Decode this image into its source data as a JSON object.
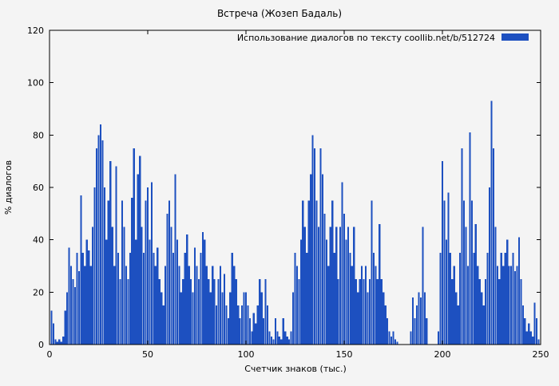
{
  "chart_data": {
    "type": "bar",
    "title": "Встреча (Жозеп Бадаль)",
    "legend": "Использование диалогов по тексту  coollib.net/b/512724",
    "xlabel": "Счетчик знаков (тыс.)",
    "ylabel": "% диалогов",
    "xlim": [
      0,
      250
    ],
    "ylim": [
      0,
      120
    ],
    "xticks": [
      0,
      50,
      100,
      150,
      200,
      250
    ],
    "yticks": [
      0,
      20,
      40,
      60,
      80,
      100,
      120
    ],
    "grid": false,
    "legend_position": "top-right-inside",
    "bar_color": "#1d50c0",
    "background_color": "#f4f4f4",
    "x_start": 1,
    "x_step": 1,
    "values": [
      13,
      8,
      2,
      1,
      2,
      1,
      3,
      13,
      20,
      37,
      30,
      25,
      22,
      35,
      28,
      57,
      35,
      30,
      40,
      36,
      30,
      45,
      60,
      75,
      80,
      84,
      78,
      60,
      40,
      55,
      70,
      45,
      30,
      68,
      35,
      25,
      55,
      45,
      30,
      25,
      35,
      56,
      75,
      40,
      65,
      72,
      45,
      35,
      55,
      60,
      40,
      62,
      35,
      30,
      37,
      25,
      20,
      15,
      30,
      50,
      55,
      45,
      35,
      65,
      40,
      30,
      20,
      25,
      35,
      42,
      30,
      25,
      20,
      37,
      30,
      25,
      35,
      43,
      40,
      30,
      25,
      20,
      30,
      25,
      15,
      25,
      30,
      20,
      27,
      15,
      10,
      20,
      35,
      30,
      25,
      15,
      10,
      15,
      20,
      20,
      15,
      10,
      5,
      12,
      8,
      15,
      25,
      20,
      10,
      25,
      15,
      5,
      3,
      2,
      10,
      5,
      3,
      2,
      10,
      5,
      3,
      2,
      5,
      20,
      35,
      30,
      25,
      40,
      55,
      45,
      35,
      55,
      65,
      80,
      75,
      55,
      45,
      75,
      65,
      50,
      40,
      30,
      45,
      55,
      35,
      45,
      25,
      45,
      62,
      50,
      40,
      45,
      35,
      30,
      45,
      25,
      20,
      25,
      30,
      25,
      30,
      20,
      25,
      55,
      35,
      30,
      25,
      46,
      25,
      20,
      15,
      10,
      5,
      3,
      5,
      2,
      1,
      0,
      0,
      0,
      0,
      0,
      0,
      5,
      18,
      10,
      15,
      20,
      18,
      45,
      20,
      10,
      0,
      0,
      0,
      0,
      0,
      5,
      35,
      70,
      55,
      40,
      58,
      35,
      25,
      30,
      20,
      15,
      35,
      75,
      55,
      45,
      30,
      81,
      55,
      35,
      46,
      30,
      25,
      20,
      15,
      25,
      35,
      60,
      93,
      75,
      45,
      30,
      25,
      35,
      30,
      35,
      40,
      30,
      30,
      35,
      28,
      30,
      41,
      25,
      15,
      10,
      5,
      8,
      5,
      3,
      16,
      10,
      2,
      0
    ]
  }
}
